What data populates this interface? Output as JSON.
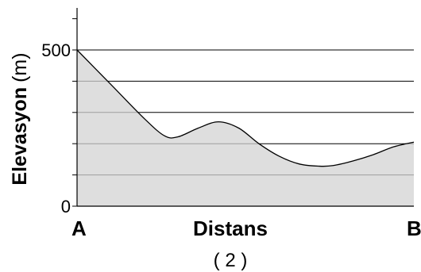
{
  "chart_data": {
    "type": "area",
    "xlabel": "Distans",
    "ylabel_main": "Elevasyon",
    "ylabel_unit": "(m)",
    "x_start_label": "A",
    "x_end_label": "B",
    "caption": "( 2 )",
    "ylim": [
      0,
      600
    ],
    "y_ticks": [
      {
        "value": 0,
        "label": "0"
      },
      {
        "value": 500,
        "label": "500"
      }
    ],
    "gridlines": [
      100,
      200,
      300,
      400,
      500
    ],
    "grid": true,
    "x": [
      0,
      0.1,
      0.2,
      0.26,
      0.3,
      0.36,
      0.42,
      0.48,
      0.54,
      0.6,
      0.66,
      0.72,
      0.76,
      0.82,
      0.88,
      0.94,
      1.0
    ],
    "values": [
      500,
      390,
      280,
      225,
      222,
      250,
      270,
      250,
      200,
      160,
      135,
      128,
      130,
      145,
      165,
      190,
      205
    ],
    "colors": {
      "fill": "#d3d3d3",
      "line": "#000000",
      "grid": "#000000"
    }
  }
}
